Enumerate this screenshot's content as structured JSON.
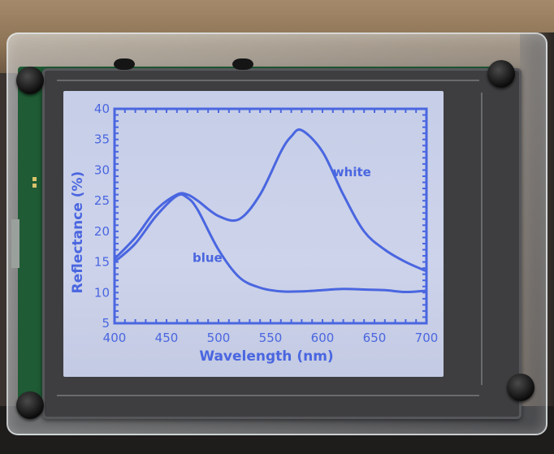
{
  "lcd_color": "#4a66e0",
  "chart_data": {
    "type": "line",
    "title": "",
    "xlabel": "Wavelength (nm)",
    "ylabel": "Reflectance (%)",
    "xlim": [
      400,
      700
    ],
    "ylim": [
      5,
      40
    ],
    "x_ticks": [
      "400",
      "450",
      "500",
      "550",
      "600",
      "650",
      "700"
    ],
    "y_ticks": [
      "5",
      "10",
      "15",
      "20",
      "25",
      "30",
      "35",
      "40"
    ],
    "grid": false,
    "series": [
      {
        "name": "white",
        "x": [
          400,
          420,
          440,
          460,
          470,
          480,
          500,
          520,
          540,
          560,
          570,
          580,
          600,
          620,
          640,
          660,
          680,
          700
        ],
        "y": [
          15.5,
          19.0,
          23.5,
          26.0,
          26.0,
          25.0,
          22.5,
          22.0,
          26.0,
          33.0,
          35.5,
          36.5,
          33.0,
          26.0,
          20.0,
          17.0,
          15.0,
          13.5
        ]
      },
      {
        "name": "blue",
        "x": [
          400,
          420,
          440,
          460,
          470,
          480,
          500,
          520,
          540,
          560,
          580,
          600,
          620,
          640,
          660,
          680,
          700
        ],
        "y": [
          15.0,
          18.0,
          22.5,
          25.8,
          25.5,
          23.5,
          17.0,
          12.5,
          10.8,
          10.2,
          10.2,
          10.4,
          10.6,
          10.5,
          10.4,
          10.1,
          10.3
        ]
      }
    ],
    "annotations": [
      {
        "text": "white",
        "x": 610,
        "y": 29
      },
      {
        "text": "blue",
        "x": 475,
        "y": 15
      }
    ]
  }
}
